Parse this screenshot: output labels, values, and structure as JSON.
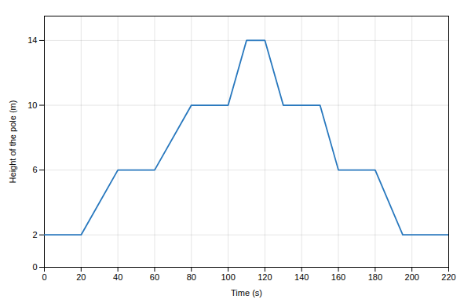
{
  "chart_data": {
    "type": "line",
    "xlabel": "Time (s)",
    "ylabel": "Height of the pole (m)",
    "x": [
      0,
      20,
      40,
      60,
      80,
      100,
      110,
      120,
      130,
      150,
      160,
      180,
      195,
      220
    ],
    "values": [
      2,
      2,
      6,
      6,
      10,
      10,
      14,
      14,
      10,
      10,
      6,
      6,
      2,
      2
    ],
    "color": "#2878BE",
    "xlim": [
      0,
      220
    ],
    "ylim": [
      0,
      15.5
    ],
    "xticks": [
      0,
      20,
      40,
      60,
      80,
      100,
      120,
      140,
      160,
      180,
      200,
      220
    ],
    "yticks": [
      0,
      2,
      6,
      10,
      14
    ],
    "grid": true
  }
}
